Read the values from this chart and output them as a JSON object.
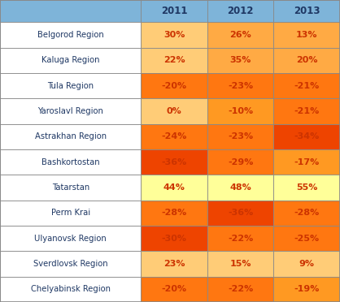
{
  "regions": [
    "Belgorod Region",
    "Kaluga Region",
    "Tula Region",
    "Yaroslavl Region",
    "Astrakhan Region",
    "Bashkortostan",
    "Tatarstan",
    "Perm Krai",
    "Ulyanovsk Region",
    "Sverdlovsk Region",
    "Chelyabinsk Region"
  ],
  "years": [
    "2011",
    "2012",
    "2013"
  ],
  "values": [
    [
      "30%",
      "26%",
      "13%"
    ],
    [
      "22%",
      "35%",
      "20%"
    ],
    [
      "-20%",
      "-23%",
      "-21%"
    ],
    [
      "0%",
      "-10%",
      "-21%"
    ],
    [
      "-24%",
      "-23%",
      "-34%"
    ],
    [
      "-36%",
      "-29%",
      "-17%"
    ],
    [
      "44%",
      "48%",
      "55%"
    ],
    [
      "-28%",
      "-36%",
      "-28%"
    ],
    [
      "-30%",
      "-22%",
      "-25%"
    ],
    [
      "23%",
      "15%",
      "9%"
    ],
    [
      "-20%",
      "-22%",
      "-19%"
    ]
  ],
  "cell_colors": [
    [
      "#FFCC77",
      "#FFAA44",
      "#FFAA44"
    ],
    [
      "#FFCC77",
      "#FFAA44",
      "#FFAA44"
    ],
    [
      "#FF7711",
      "#FF7711",
      "#FF7711"
    ],
    [
      "#FFCC77",
      "#FF9922",
      "#FF7711"
    ],
    [
      "#FF7711",
      "#FF7711",
      "#EE4400"
    ],
    [
      "#EE4400",
      "#FF7711",
      "#FF9922"
    ],
    [
      "#FFFF99",
      "#FFFF99",
      "#FFFF99"
    ],
    [
      "#FF7711",
      "#EE4400",
      "#FF7711"
    ],
    [
      "#EE4400",
      "#FF7711",
      "#FF7711"
    ],
    [
      "#FFCC77",
      "#FFCC77",
      "#FFCC77"
    ],
    [
      "#FF7711",
      "#FF7711",
      "#FF9922"
    ]
  ],
  "header_bg": "#7EB4D9",
  "header_text_color": "#1F3864",
  "region_col_bg": "#FFFFFF",
  "region_text_color": "#1F3864",
  "value_text_color": "#CC3300",
  "border_color": "#888888",
  "figsize": [
    4.18,
    3.72
  ],
  "dpi": 100
}
